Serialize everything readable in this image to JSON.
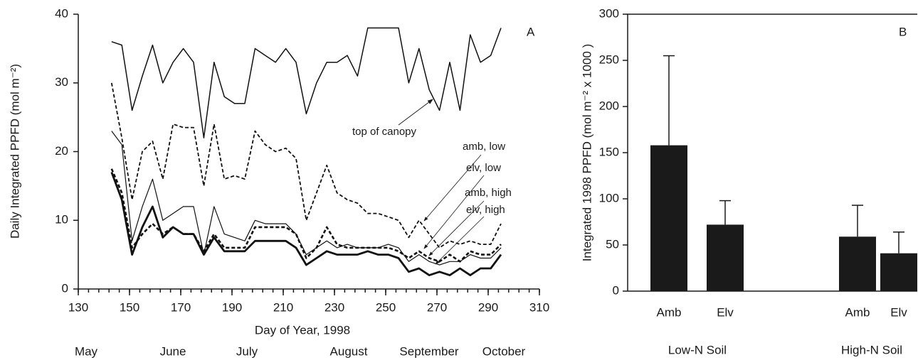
{
  "chart_data": [
    {
      "type": "line",
      "annotation": "A",
      "xlabel": "Day of Year, 1998",
      "ylabel": "Daily Integrated PPFD (mol m⁻²)",
      "months": [
        "May",
        "June",
        "July",
        "August",
        "September",
        "October"
      ],
      "xlim": [
        130,
        310
      ],
      "xticks": [
        130,
        150,
        170,
        190,
        210,
        230,
        250,
        270,
        290,
        310
      ],
      "ylim": [
        0,
        40
      ],
      "yticks": [
        0,
        10,
        20,
        30,
        40
      ],
      "x": [
        143,
        147,
        151,
        155,
        159,
        163,
        167,
        171,
        175,
        179,
        183,
        187,
        191,
        195,
        199,
        203,
        207,
        211,
        215,
        219,
        223,
        227,
        231,
        235,
        239,
        243,
        247,
        251,
        255,
        259,
        263,
        267,
        271,
        275,
        279,
        283,
        287,
        291,
        295
      ],
      "series": [
        {
          "name": "top of canopy",
          "color": "#111111",
          "dashed": false,
          "line_width": 1.5,
          "values": [
            36,
            35.5,
            26,
            31,
            35.5,
            30,
            33,
            35,
            33,
            22,
            33,
            28,
            27,
            27,
            35,
            34,
            33,
            35,
            33,
            25.5,
            30,
            33,
            33,
            34,
            31,
            38,
            38,
            38,
            38,
            30,
            35,
            29,
            26,
            33,
            26,
            37,
            33,
            34,
            38
          ]
        },
        {
          "name": "amb, low",
          "color": "#111111",
          "dashed": true,
          "line_width": 1.8,
          "values": [
            30,
            22,
            13,
            20,
            21.5,
            16,
            24,
            23.5,
            23.5,
            15,
            24,
            16,
            16.5,
            16,
            23,
            21,
            20,
            20.5,
            19,
            10,
            14,
            18,
            14,
            13,
            12.5,
            11,
            11,
            10.5,
            10,
            7.5,
            10,
            8,
            6,
            7,
            6.5,
            7,
            6.5,
            6.5,
            9.5
          ]
        },
        {
          "name": "elv, low",
          "color": "#111111",
          "dashed": false,
          "line_width": 1.2,
          "values": [
            23,
            21,
            7,
            12,
            16,
            10,
            11,
            12,
            12,
            5,
            12,
            8,
            7.5,
            7,
            10,
            9.5,
            9.5,
            9.5,
            8,
            5,
            6,
            7,
            6,
            6.5,
            6,
            6,
            6,
            6.5,
            6,
            4,
            5,
            4,
            3.5,
            4,
            4,
            5,
            4.5,
            4.5,
            6
          ]
        },
        {
          "name": "amb, high",
          "color": "#111111",
          "dashed": true,
          "line_width": 2.6,
          "values": [
            17.5,
            14,
            6,
            8,
            9.5,
            8,
            9,
            8,
            8,
            5.5,
            8,
            6,
            6,
            6,
            9,
            9,
            9,
            9,
            8,
            4.5,
            6,
            9,
            6.5,
            6,
            6,
            6,
            6,
            6,
            5.5,
            4.5,
            5.5,
            4.5,
            4,
            5,
            4,
            5.5,
            5,
            5,
            6.5
          ]
        },
        {
          "name": "elv, high",
          "color": "#111111",
          "dashed": false,
          "line_width": 2.8,
          "values": [
            17,
            13,
            5,
            9,
            12,
            7.5,
            9,
            8,
            8,
            5,
            7.5,
            5.5,
            5.5,
            5.5,
            7,
            7,
            7,
            7,
            6,
            3.5,
            4.5,
            5.5,
            5,
            5,
            5,
            5.5,
            5,
            5,
            4.5,
            2.5,
            3,
            2,
            2.5,
            2,
            3,
            2,
            3,
            3,
            5
          ]
        }
      ]
    },
    {
      "type": "bar",
      "annotation": "B",
      "ylabel": "Integrated 1998 PPFD (mol m⁻² x 1000 )",
      "categories": [
        "Amb",
        "Elv",
        "Amb",
        "Elv"
      ],
      "groups": [
        "Low-N Soil",
        "High-N Soil"
      ],
      "values": [
        158,
        72,
        59,
        41
      ],
      "errors": [
        97,
        26,
        34,
        23
      ],
      "color": "#1a1a1a",
      "ylim": [
        0,
        300
      ],
      "yticks": [
        0,
        50,
        100,
        150,
        200,
        250,
        300
      ]
    }
  ]
}
